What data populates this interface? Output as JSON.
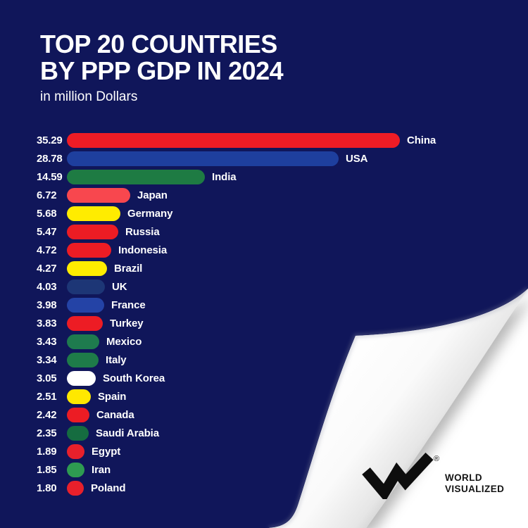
{
  "header": {
    "title_line1": "TOP 20 COUNTRIES",
    "title_line2": "BY PPP GDP IN 2024",
    "subtitle": "in million Dollars"
  },
  "chart_data": {
    "type": "bar",
    "orientation": "horizontal",
    "title": "TOP 20 COUNTRIES BY PPP GDP IN 2024",
    "unit_label": "in million Dollars",
    "value_label_position": "left-of-bar",
    "category_label_position": "right-of-bar",
    "grid": false,
    "legend": false,
    "max_value": 35.29,
    "categories": [
      "China",
      "USA",
      "India",
      "Japan",
      "Germany",
      "Russia",
      "Indonesia",
      "Brazil",
      "UK",
      "France",
      "Turkey",
      "Mexico",
      "Italy",
      "South Korea",
      "Spain",
      "Canada",
      "Saudi Arabia",
      "Egypt",
      "Iran",
      "Poland"
    ],
    "values": [
      35.29,
      28.78,
      14.59,
      6.72,
      5.68,
      5.47,
      4.72,
      4.27,
      4.03,
      3.98,
      3.83,
      3.43,
      3.34,
      3.05,
      2.51,
      2.42,
      2.35,
      1.89,
      1.85,
      1.8
    ],
    "display_values": [
      "35.29",
      "28.78",
      "14.59",
      "6.72",
      "5.68",
      "5.47",
      "4.72",
      "4.27",
      "4.03",
      "3.98",
      "3.83",
      "3.43",
      "3.34",
      "3.05",
      "2.51",
      "2.42",
      "2.35",
      "1.89",
      "1.85",
      "1.80"
    ],
    "bar_colors": [
      "#ee1c25",
      "#1e3f9e",
      "#1e7b43",
      "#f8474e",
      "#ffec00",
      "#ec1c24",
      "#ec1c24",
      "#ffec00",
      "#1d3676",
      "#2443a6",
      "#ed1c24",
      "#1e7b4e",
      "#1e7b49",
      "#ffffff",
      "#ffe800",
      "#ec1c24",
      "#156c40",
      "#e8202b",
      "#2e9b51",
      "#e8202b"
    ]
  },
  "logo": {
    "line1": "WORLD",
    "line2": "VISUALIZED",
    "registered_mark": "®",
    "icon": "wv-zigzag-icon"
  },
  "colors": {
    "background": "#10165a",
    "text": "#ffffff",
    "page_under": "#ffffff",
    "logo_ink": "#141414"
  }
}
